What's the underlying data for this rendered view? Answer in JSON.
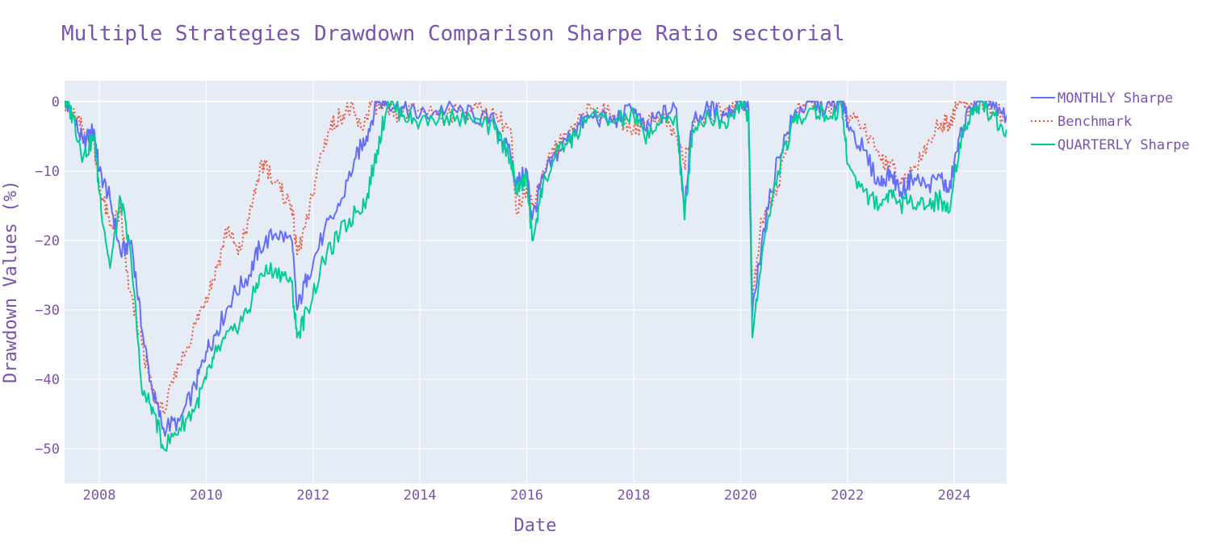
{
  "chart_data": {
    "type": "line",
    "title": "Multiple Strategies Drawdown Comparison Sharpe Ratio sectorial",
    "xlabel": "Date",
    "ylabel": "Drawdown Values (%)",
    "xlim": [
      2007.35,
      2024.98
    ],
    "ylim": [
      -55,
      3
    ],
    "x_ticks": [
      2008,
      2010,
      2012,
      2014,
      2016,
      2018,
      2020,
      2022,
      2024
    ],
    "x_tick_labels": [
      "2008",
      "2010",
      "2012",
      "2014",
      "2016",
      "2018",
      "2020",
      "2022",
      "2024"
    ],
    "y_ticks": [
      0,
      -10,
      -20,
      -30,
      -40,
      -50
    ],
    "y_tick_labels": [
      "0",
      "−10",
      "−20",
      "−30",
      "−40",
      "−50"
    ],
    "grid": true,
    "legend_position": "right",
    "series": [
      {
        "name": "MONTHLY Sharpe",
        "color": "#636efa",
        "dash": "solid",
        "x": [
          2007.35,
          2007.5,
          2007.7,
          2007.9,
          2008.0,
          2008.2,
          2008.4,
          2008.6,
          2008.8,
          2009.0,
          2009.2,
          2009.5,
          2009.8,
          2010.0,
          2010.2,
          2010.5,
          2010.8,
          2011.0,
          2011.3,
          2011.6,
          2011.7,
          2011.9,
          2012.2,
          2012.5,
          2012.8,
          2013.0,
          2013.2,
          2013.4,
          2013.7,
          2014.0,
          2014.5,
          2015.0,
          2015.4,
          2015.7,
          2015.8,
          2016.0,
          2016.1,
          2016.3,
          2016.6,
          2016.9,
          2017.2,
          2017.6,
          2018.0,
          2018.2,
          2018.5,
          2018.8,
          2018.95,
          2019.1,
          2019.4,
          2019.7,
          2020.0,
          2020.15,
          2020.22,
          2020.4,
          2020.7,
          2021.0,
          2021.3,
          2021.6,
          2021.9,
          2022.0,
          2022.3,
          2022.6,
          2022.8,
          2023.0,
          2023.2,
          2023.5,
          2023.75,
          2023.9,
          2024.1,
          2024.3,
          2024.5,
          2024.7,
          2024.98
        ],
        "y": [
          0,
          -2,
          -6,
          -4,
          -10,
          -14,
          -22,
          -20,
          -33,
          -42,
          -47,
          -46,
          -41,
          -36,
          -33,
          -28,
          -25,
          -21,
          -19,
          -20,
          -30,
          -25,
          -19,
          -15,
          -8,
          -5,
          0,
          0,
          -1,
          -2,
          -1,
          -2,
          -3,
          -8,
          -12,
          -10,
          -17,
          -11,
          -7,
          -4,
          -2,
          -3,
          -1,
          -4,
          -2,
          -1,
          -15,
          -3,
          -1,
          -2,
          0,
          -1,
          -31,
          -20,
          -8,
          -2,
          0,
          -1,
          0,
          -3,
          -7,
          -12,
          -10,
          -13,
          -11,
          -12,
          -11,
          -13,
          -5,
          -1,
          0,
          -1,
          -2
        ]
      },
      {
        "name": "Benchmark",
        "color": "#ef553b",
        "dash": "dot",
        "x": [
          2007.35,
          2007.5,
          2007.7,
          2007.9,
          2008.0,
          2008.2,
          2008.4,
          2008.55,
          2008.8,
          2009.0,
          2009.2,
          2009.5,
          2009.8,
          2010.0,
          2010.2,
          2010.4,
          2010.6,
          2010.8,
          2011.0,
          2011.1,
          2011.4,
          2011.6,
          2011.7,
          2011.9,
          2012.1,
          2012.3,
          2012.5,
          2012.7,
          2012.9,
          2013.1,
          2013.3,
          2013.6,
          2014.0,
          2014.5,
          2015.0,
          2015.4,
          2015.7,
          2015.8,
          2016.0,
          2016.1,
          2016.3,
          2016.6,
          2016.9,
          2017.2,
          2017.6,
          2018.0,
          2018.2,
          2018.5,
          2018.8,
          2018.95,
          2019.1,
          2019.4,
          2019.7,
          2020.0,
          2020.15,
          2020.22,
          2020.4,
          2020.7,
          2021.0,
          2021.3,
          2021.6,
          2021.9,
          2022.0,
          2022.3,
          2022.6,
          2022.8,
          2023.0,
          2023.2,
          2023.5,
          2023.75,
          2023.9,
          2024.1,
          2024.3,
          2024.5,
          2024.7,
          2024.98
        ],
        "y": [
          0,
          -2,
          -4,
          -6,
          -12,
          -18,
          -16,
          -27,
          -35,
          -42,
          -45,
          -38,
          -32,
          -28,
          -24,
          -18,
          -22,
          -17,
          -10,
          -9,
          -13,
          -15,
          -22,
          -17,
          -9,
          -4,
          -2,
          -1,
          -4,
          0,
          -1,
          -2,
          -1,
          -2,
          -1,
          -2,
          -4,
          -16,
          -12,
          -15,
          -10,
          -6,
          -3,
          -1,
          -2,
          -4,
          -3,
          -2,
          -5,
          -9,
          -4,
          -2,
          -1,
          0,
          -1,
          -28,
          -17,
          -12,
          -2,
          0,
          -1,
          0,
          -2,
          -4,
          -8,
          -9,
          -12,
          -10,
          -6,
          -3,
          -3,
          0,
          -1,
          0,
          -1,
          -2
        ]
      },
      {
        "name": "QUARTERLY Sharpe",
        "color": "#00cc96",
        "dash": "solid",
        "x": [
          2007.35,
          2007.5,
          2007.7,
          2007.9,
          2008.0,
          2008.2,
          2008.4,
          2008.6,
          2008.8,
          2009.0,
          2009.2,
          2009.5,
          2009.8,
          2010.0,
          2010.2,
          2010.5,
          2010.8,
          2011.0,
          2011.3,
          2011.6,
          2011.7,
          2011.9,
          2012.2,
          2012.5,
          2012.8,
          2013.0,
          2013.2,
          2013.4,
          2013.7,
          2014.0,
          2014.5,
          2015.0,
          2015.4,
          2015.7,
          2015.8,
          2016.0,
          2016.1,
          2016.3,
          2016.6,
          2016.9,
          2017.2,
          2017.6,
          2018.0,
          2018.2,
          2018.5,
          2018.8,
          2018.95,
          2019.1,
          2019.4,
          2019.7,
          2020.0,
          2020.15,
          2020.22,
          2020.4,
          2020.7,
          2021.0,
          2021.3,
          2021.6,
          2021.9,
          2022.0,
          2022.3,
          2022.6,
          2022.8,
          2023.0,
          2023.2,
          2023.5,
          2023.75,
          2023.9,
          2024.1,
          2024.3,
          2024.5,
          2024.7,
          2024.98
        ],
        "y": [
          0,
          -2,
          -8,
          -5,
          -13,
          -24,
          -14,
          -23,
          -42,
          -44,
          -50,
          -47,
          -44,
          -40,
          -36,
          -33,
          -30,
          -25,
          -24,
          -26,
          -34,
          -30,
          -23,
          -19,
          -16,
          -14,
          -7,
          0,
          -2,
          -3,
          -2,
          -3,
          -4,
          -8,
          -13,
          -11,
          -20,
          -12,
          -7,
          -5,
          -2,
          -3,
          -2,
          -5,
          -3,
          -2,
          -17,
          -4,
          -2,
          -3,
          0,
          -2,
          -34,
          -22,
          -10,
          -3,
          -1,
          -2,
          -1,
          -9,
          -13,
          -15,
          -13,
          -15,
          -14,
          -15,
          -14,
          -16,
          -6,
          -2,
          0,
          -2,
          -4
        ]
      }
    ]
  }
}
